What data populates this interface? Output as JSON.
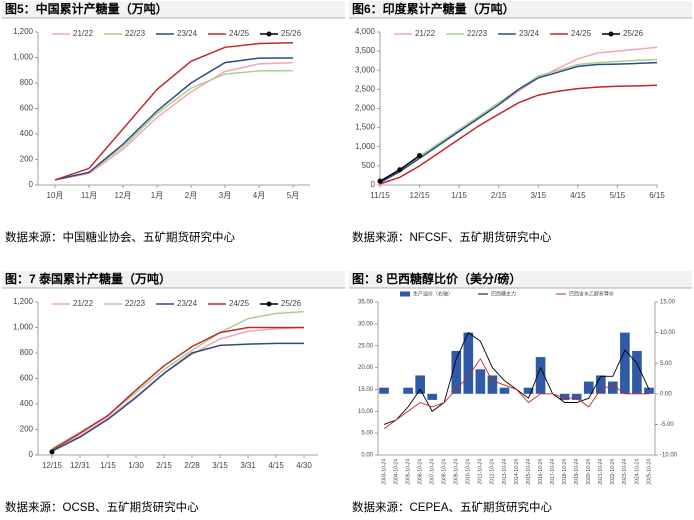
{
  "chart_data": [
    {
      "type": "line",
      "title": "图5：中国累计产糖量（万吨）",
      "source": "数据来源：中国糖业协会、五矿期货研究中心",
      "categories": [
        "10月",
        "11月",
        "12月",
        "1月",
        "2月",
        "3月",
        "4月",
        "5月"
      ],
      "ylim": [
        0,
        1200
      ],
      "yticks": [
        0,
        200,
        400,
        600,
        800,
        {
          "value": 1000,
          "label": "1,000"
        },
        {
          "value": 1200,
          "label": "1,200"
        }
      ],
      "series": [
        {
          "name": "21/22",
          "color": "#f4a6b7",
          "values": [
            40,
            90,
            280,
            530,
            730,
            890,
            950,
            960
          ]
        },
        {
          "name": "22/23",
          "color": "#a9d18e",
          "values": [
            40,
            100,
            300,
            560,
            760,
            870,
            895,
            897
          ]
        },
        {
          "name": "23/24",
          "color": "#2e4a87",
          "values": [
            40,
            100,
            320,
            580,
            800,
            960,
            995,
            996
          ]
        },
        {
          "name": "24/25",
          "color": "#c0282e",
          "values": [
            40,
            130,
            440,
            750,
            970,
            1080,
            1110,
            1116
          ]
        },
        {
          "name": "25/26",
          "color": "#000000",
          "marker": true,
          "values": [
            null,
            null,
            null,
            null,
            null,
            null,
            null,
            null
          ]
        }
      ]
    },
    {
      "type": "line",
      "title": "图6：印度累计产糖量（万吨）",
      "source": "数据来源：NFCSF、五矿期货研究中心",
      "categories": [
        "11/15",
        null,
        "12/15",
        null,
        "1/15",
        null,
        "2/15",
        null,
        "3/15",
        null,
        "4/15",
        null,
        "5/15",
        null,
        "6/15"
      ],
      "ylim": [
        0,
        4000
      ],
      "yticks": [
        0,
        500,
        {
          "value": 1000,
          "label": "1,000"
        },
        {
          "value": 1500,
          "label": "1,500"
        },
        {
          "value": 2000,
          "label": "2,000"
        },
        {
          "value": 2500,
          "label": "2,500"
        },
        {
          "value": 3000,
          "label": "3,000"
        },
        {
          "value": 3500,
          "label": "3,500"
        },
        {
          "value": 4000,
          "label": "4,000"
        }
      ],
      "series": [
        {
          "name": "21/22",
          "color": "#f4a6b7",
          "values": [
            80,
            350,
            700,
            1050,
            1400,
            1750,
            2100,
            2450,
            2800,
            3050,
            3300,
            3450,
            3500,
            3550,
            3600
          ]
        },
        {
          "name": "22/23",
          "color": "#a9d18e",
          "values": [
            80,
            400,
            750,
            1100,
            1450,
            1800,
            2150,
            2500,
            2850,
            3000,
            3150,
            3200,
            3230,
            3260,
            3280
          ]
        },
        {
          "name": "23/24",
          "color": "#2e4a87",
          "values": [
            60,
            350,
            700,
            1050,
            1400,
            1750,
            2100,
            2500,
            2800,
            2950,
            3100,
            3150,
            3160,
            3180,
            3200
          ]
        },
        {
          "name": "24/25",
          "color": "#c0282e",
          "values": [
            30,
            200,
            500,
            850,
            1200,
            1550,
            1850,
            2150,
            2350,
            2450,
            2520,
            2560,
            2580,
            2590,
            2610
          ]
        },
        {
          "name": "25/26",
          "color": "#000000",
          "marker": true,
          "values": [
            100,
            400,
            770,
            null,
            null,
            null,
            null,
            null,
            null,
            null,
            null,
            null,
            null,
            null,
            null
          ]
        }
      ]
    },
    {
      "type": "line",
      "title": "图：7 泰国累计产糖量（万吨）",
      "source": "数据来源：OCSB、五矿期货研究中心",
      "categories": [
        "12/15",
        "12/31",
        "1/15",
        "1/30",
        "2/15",
        "2/28",
        "3/15",
        "3/31",
        "4/15",
        "4/30"
      ],
      "ylim": [
        0,
        1200
      ],
      "yticks": [
        0,
        200,
        400,
        600,
        800,
        {
          "value": 1000,
          "label": "1,000"
        },
        {
          "value": 1200,
          "label": "1,200"
        }
      ],
      "series": [
        {
          "name": "21/22",
          "color": "#f4a6b7",
          "values": [
            40,
            150,
            290,
            460,
            640,
            790,
            910,
            970,
            990,
            1000
          ]
        },
        {
          "name": "22/23",
          "color": "#a9d18e",
          "values": [
            50,
            180,
            310,
            490,
            670,
            820,
            960,
            1070,
            1110,
            1125
          ]
        },
        {
          "name": "23/24",
          "color": "#2e4a87",
          "values": [
            30,
            140,
            280,
            450,
            640,
            800,
            860,
            870,
            875,
            875
          ]
        },
        {
          "name": "24/25",
          "color": "#c0282e",
          "values": [
            40,
            170,
            310,
            510,
            700,
            850,
            960,
            1000,
            1000,
            1000
          ]
        },
        {
          "name": "25/26",
          "color": "#000000",
          "marker": true,
          "values": [
            25,
            null,
            null,
            null,
            null,
            null,
            null,
            null,
            null,
            null
          ]
        }
      ]
    },
    {
      "type": "combo",
      "title": "图：8 巴西糖醇比价（美分/磅）",
      "source": "数据来源：CEPEA、五矿期货研究中心",
      "categories": [
        "2003-10-24",
        "2004-10-24",
        "2005-10-24",
        "2006-10-24",
        "2007-10-24",
        "2008-10-24",
        "2009-10-24",
        "2010-10-24",
        "2011-10-24",
        "2012-10-24",
        "2013-10-24",
        "2014-10-24",
        "2015-10-24",
        "2016-10-24",
        "2017-10-24",
        "2018-10-24",
        "2019-10-24",
        "2020-10-24",
        "2021-10-24",
        "2022-10-24",
        "2023-10-24",
        "2024-10-24",
        "2025-10-24"
      ],
      "ylim": [
        0,
        35
      ],
      "yticks": [
        {
          "value": 0,
          "label": "0.00"
        },
        {
          "value": 5,
          "label": "5.00"
        },
        {
          "value": 10,
          "label": "10.00"
        },
        {
          "value": 15,
          "label": "15.00"
        },
        {
          "value": 20,
          "label": "20.00"
        },
        {
          "value": 25,
          "label": "25.00"
        },
        {
          "value": 30,
          "label": "30.00"
        },
        {
          "value": 35,
          "label": "35.00"
        }
      ],
      "y2lim": [
        -10,
        15
      ],
      "y2ticks": [
        {
          "value": -10,
          "label": "-10.00"
        },
        {
          "value": -5,
          "label": "-5.00"
        },
        {
          "value": 0,
          "label": "0.00"
        },
        {
          "value": 5,
          "label": "5.00"
        },
        {
          "value": 10,
          "label": "10.00"
        },
        {
          "value": 15,
          "label": "15.00"
        }
      ],
      "series": [
        {
          "name": "生产溢价（右轴）",
          "color": "#2e5aa8",
          "axis": "y2",
          "values": [
            1,
            0,
            1,
            3,
            -1,
            0,
            7,
            10,
            4,
            3,
            1,
            0,
            1,
            6,
            0,
            -1,
            -1,
            2,
            3,
            2,
            10,
            7,
            1
          ]
        },
        {
          "name": "巴西糖主力",
          "color": "#000000",
          "values": [
            7,
            8,
            11,
            15,
            10,
            12,
            22,
            28,
            26,
            20,
            17,
            15,
            13,
            20,
            14,
            12,
            12,
            13,
            18,
            18,
            24,
            21,
            15
          ]
        },
        {
          "name": "巴西含水乙醇折算价",
          "color": "#c0282e",
          "values": [
            6,
            8,
            10,
            12,
            11,
            12,
            15,
            18,
            22,
            17,
            16,
            15,
            12,
            14,
            14,
            13,
            13,
            11,
            15,
            16,
            14,
            14,
            14
          ]
        }
      ]
    }
  ]
}
